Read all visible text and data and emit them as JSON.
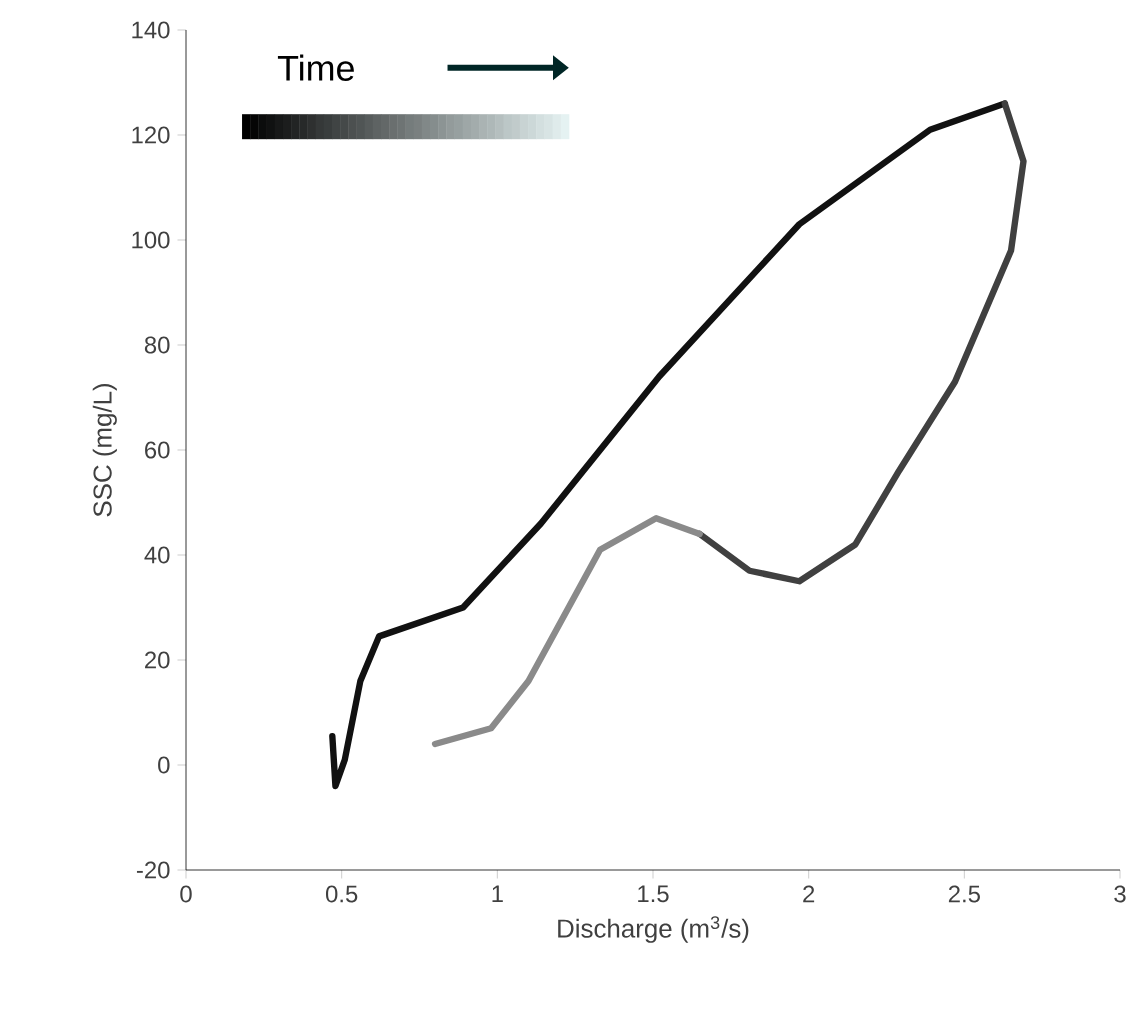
{
  "chart_data": {
    "type": "line",
    "xlabel": "Discharge (m$^{3}$/s)",
    "ylabel": "SSC (mg/L)",
    "xlim": [
      0,
      3
    ],
    "ylim": [
      -20,
      140
    ],
    "xticks": [
      0,
      0.5,
      1,
      1.5,
      2,
      2.5,
      3
    ],
    "yticks": [
      -20,
      0,
      20,
      40,
      60,
      80,
      100,
      120,
      140
    ],
    "line_style": "solid",
    "annotations": [
      "Time"
    ],
    "series": [
      {
        "color": "#111111",
        "x": [
          0.47,
          0.48,
          0.51,
          0.56,
          0.62,
          0.89,
          1.14,
          1.52,
          1.97,
          2.39,
          2.63
        ],
        "values": [
          5.5,
          -4,
          1,
          16,
          24.5,
          30,
          46,
          74,
          103,
          121,
          126
        ]
      },
      {
        "color": "#404040",
        "x": [
          2.63,
          2.69,
          2.65,
          2.47,
          2.29,
          2.15,
          1.97,
          1.81,
          1.65
        ],
        "values": [
          126,
          115,
          98,
          73,
          56,
          42,
          35,
          37,
          44
        ]
      },
      {
        "color": "#8a8a8a",
        "x": [
          1.65,
          1.51,
          1.33,
          1.1,
          0.98,
          0.8
        ],
        "values": [
          44,
          47,
          41,
          16,
          7,
          4
        ]
      }
    ]
  }
}
